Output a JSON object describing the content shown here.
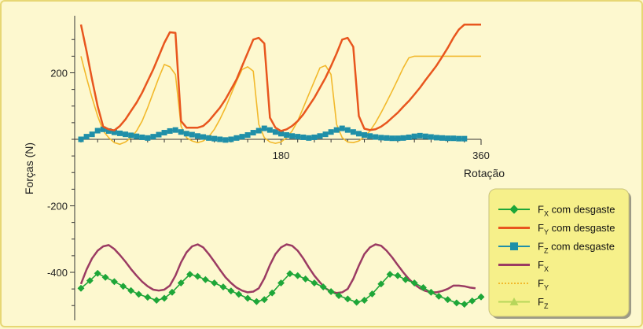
{
  "chart_data": {
    "type": "line",
    "xlabel": "Rotação",
    "ylabel": "Forças (N)",
    "xlim": [
      0,
      360
    ],
    "ylim": [
      -540,
      360
    ],
    "x_ticks": [
      180,
      360
    ],
    "y_ticks": [
      200,
      -200,
      -400
    ],
    "grid": false,
    "legend_position": "bottom-right",
    "series": [
      {
        "name": "Fx com desgaste",
        "name_base": "F",
        "name_sub": "X",
        "name_suffix": " com desgaste",
        "color": "#1ea638",
        "marker": "diamond",
        "dash": "",
        "x": [
          0,
          8,
          15,
          22,
          30,
          38,
          45,
          52,
          60,
          68,
          75,
          82,
          90,
          98,
          105,
          112,
          120,
          128,
          135,
          142,
          150,
          158,
          165,
          172,
          180,
          188,
          195,
          202,
          210,
          218,
          225,
          232,
          240,
          248,
          255,
          262,
          270,
          278,
          285,
          292,
          300,
          308,
          315,
          322,
          330,
          338,
          345,
          352,
          360
        ],
        "y": [
          -448,
          -425,
          -403,
          -415,
          -428,
          -442,
          -455,
          -466,
          -475,
          -484,
          -478,
          -460,
          -432,
          -406,
          -412,
          -422,
          -432,
          -444,
          -456,
          -466,
          -478,
          -488,
          -482,
          -462,
          -432,
          -404,
          -410,
          -420,
          -432,
          -444,
          -458,
          -470,
          -480,
          -490,
          -484,
          -465,
          -435,
          -406,
          -410,
          -422,
          -432,
          -446,
          -460,
          -472,
          -482,
          -492,
          -496,
          -486,
          -474
        ]
      },
      {
        "name": "Fy com desgaste",
        "name_base": "F",
        "name_sub": "Y",
        "name_suffix": " com desgaste",
        "color": "#e8561e",
        "marker": "none",
        "dash": "",
        "x": [
          0,
          5,
          10,
          15,
          20,
          25,
          30,
          35,
          40,
          45,
          50,
          55,
          60,
          65,
          70,
          75,
          80,
          85,
          90,
          95,
          100,
          105,
          110,
          115,
          120,
          125,
          130,
          135,
          140,
          145,
          150,
          155,
          160,
          165,
          170,
          175,
          180,
          185,
          190,
          195,
          200,
          205,
          210,
          215,
          220,
          225,
          230,
          235,
          240,
          245,
          250,
          255,
          260,
          265,
          270,
          275,
          280,
          285,
          290,
          295,
          300,
          305,
          310,
          315,
          320,
          325,
          330,
          335,
          340,
          345,
          350,
          355,
          360
        ],
        "y": [
          345,
          265,
          180,
          100,
          38,
          30,
          27,
          40,
          60,
          85,
          110,
          140,
          175,
          210,
          250,
          290,
          322,
          320,
          55,
          35,
          35,
          35,
          40,
          55,
          75,
          95,
          120,
          150,
          180,
          220,
          260,
          300,
          305,
          288,
          65,
          35,
          25,
          30,
          40,
          55,
          75,
          100,
          125,
          155,
          185,
          220,
          258,
          300,
          305,
          278,
          70,
          32,
          28,
          30,
          38,
          50,
          65,
          80,
          98,
          115,
          135,
          155,
          178,
          200,
          222,
          248,
          275,
          305,
          330,
          345,
          345,
          345,
          345
        ]
      },
      {
        "name": "Fz com desgaste",
        "name_base": "F",
        "name_sub": "Z",
        "name_suffix": " com desgaste",
        "color": "#1f8fa8",
        "marker": "square",
        "dash": "",
        "x": [
          0,
          5,
          10,
          15,
          20,
          25,
          30,
          35,
          40,
          45,
          50,
          55,
          60,
          65,
          70,
          75,
          80,
          85,
          90,
          95,
          100,
          105,
          110,
          115,
          120,
          125,
          130,
          135,
          140,
          145,
          150,
          155,
          160,
          165,
          170,
          175,
          180,
          185,
          190,
          195,
          200,
          205,
          210,
          215,
          220,
          225,
          230,
          235,
          240,
          245,
          250,
          255,
          260,
          265,
          270,
          275,
          280,
          285,
          290,
          295,
          300,
          305,
          310,
          315,
          320,
          325,
          330,
          335,
          340,
          345
        ],
        "y": [
          0,
          8,
          15,
          26,
          30,
          25,
          21,
          18,
          15,
          12,
          9,
          6,
          4,
          8,
          14,
          20,
          25,
          28,
          22,
          17,
          14,
          10,
          7,
          4,
          2,
          0,
          -2,
          0,
          4,
          8,
          13,
          20,
          26,
          33,
          28,
          22,
          17,
          13,
          10,
          8,
          6,
          4,
          6,
          10,
          15,
          22,
          28,
          33,
          28,
          22,
          17,
          13,
          10,
          7,
          5,
          4,
          3,
          3,
          4,
          6,
          9,
          11,
          9,
          7,
          5,
          4,
          3,
          3,
          2,
          2
        ]
      },
      {
        "name": "Fx",
        "name_base": "F",
        "name_sub": "X",
        "name_suffix": "",
        "color": "#9b3b62",
        "marker": "none",
        "dash": "",
        "x": [
          0,
          5,
          10,
          15,
          20,
          25,
          30,
          35,
          40,
          45,
          50,
          55,
          60,
          65,
          70,
          75,
          80,
          85,
          90,
          95,
          100,
          105,
          110,
          115,
          120,
          125,
          130,
          135,
          140,
          145,
          150,
          155,
          160,
          165,
          170,
          175,
          180,
          185,
          190,
          195,
          200,
          205,
          210,
          215,
          220,
          225,
          230,
          235,
          240,
          245,
          250,
          255,
          260,
          265,
          270,
          275,
          280,
          285,
          290,
          295,
          300,
          305,
          310,
          315,
          320,
          325,
          330,
          335,
          340,
          345,
          350,
          355
        ],
        "y": [
          -435,
          -392,
          -358,
          -335,
          -322,
          -318,
          -330,
          -348,
          -368,
          -390,
          -410,
          -428,
          -442,
          -452,
          -455,
          -452,
          -440,
          -410,
          -370,
          -340,
          -322,
          -316,
          -325,
          -345,
          -368,
          -392,
          -415,
          -432,
          -446,
          -455,
          -460,
          -458,
          -448,
          -418,
          -378,
          -345,
          -325,
          -316,
          -320,
          -335,
          -358,
          -385,
          -410,
          -430,
          -448,
          -458,
          -462,
          -460,
          -450,
          -420,
          -380,
          -345,
          -325,
          -316,
          -320,
          -335,
          -355,
          -378,
          -400,
          -420,
          -436,
          -448,
          -456,
          -460,
          -460,
          -456,
          -450,
          -440,
          -440,
          -442,
          -446,
          -448
        ]
      },
      {
        "name": "Fy",
        "name_base": "F",
        "name_sub": "Y",
        "name_suffix": "",
        "color": "#f2b92c",
        "marker": "none",
        "dash": "",
        "x": [
          0,
          5,
          10,
          15,
          20,
          25,
          30,
          35,
          40,
          45,
          50,
          55,
          60,
          65,
          70,
          75,
          80,
          85,
          90,
          95,
          100,
          105,
          110,
          115,
          120,
          125,
          130,
          135,
          140,
          145,
          150,
          155,
          160,
          165,
          170,
          175,
          180,
          185,
          190,
          195,
          200,
          205,
          210,
          215,
          220,
          225,
          230,
          235,
          240,
          245,
          250,
          255,
          260,
          265,
          270,
          275,
          280,
          285,
          290,
          295,
          300,
          305,
          310,
          315,
          320,
          325,
          330,
          335,
          340,
          345,
          350,
          355,
          360
        ],
        "y": [
          250,
          185,
          125,
          70,
          25,
          5,
          -10,
          -15,
          -8,
          5,
          25,
          55,
          95,
          140,
          185,
          225,
          218,
          195,
          40,
          5,
          -5,
          -10,
          -5,
          8,
          30,
          60,
          95,
          135,
          175,
          210,
          218,
          205,
          45,
          5,
          -8,
          -12,
          -8,
          5,
          25,
          55,
          95,
          135,
          175,
          215,
          222,
          195,
          45,
          5,
          -8,
          -10,
          -5,
          8,
          25,
          50,
          80,
          112,
          145,
          180,
          215,
          245,
          250,
          250,
          250,
          250,
          250,
          250,
          250,
          250,
          250,
          250,
          250,
          250,
          250
        ]
      },
      {
        "name": "Fz",
        "name_base": "F",
        "name_sub": "Z",
        "name_suffix": "",
        "color": "#b7d65b",
        "marker": "triangle",
        "dash": "",
        "x": [],
        "y": []
      }
    ]
  }
}
